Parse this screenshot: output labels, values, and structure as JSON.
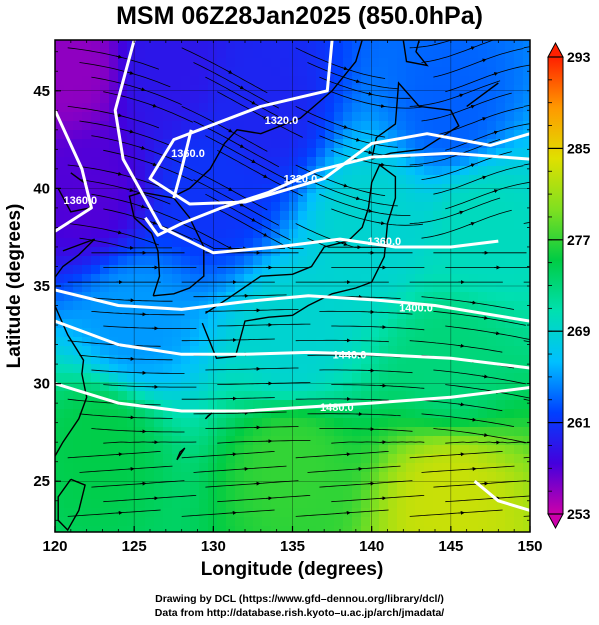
{
  "chart_data": {
    "type": "heatmap",
    "title": "MSM 06Z28Jan2025 (850.0hPa)",
    "xlabel": "Longitude (degrees)",
    "ylabel": "Latitude  (degrees)",
    "xlim": [
      120,
      150
    ],
    "ylim": [
      22.4,
      47.6
    ],
    "x_ticks": [
      "120",
      "125",
      "130",
      "135",
      "140",
      "145",
      "150"
    ],
    "y_ticks": [
      "25",
      "30",
      "35",
      "40",
      "45"
    ],
    "x_tick_values": [
      120,
      125,
      130,
      135,
      140,
      145,
      150
    ],
    "y_tick_values": [
      25,
      30,
      35,
      40,
      45
    ],
    "grid": true,
    "colorbar": {
      "min": 253,
      "max": 293,
      "tick_labels": [
        "293",
        "285",
        "277",
        "269",
        "261",
        "253"
      ],
      "tick_values": [
        293,
        285,
        277,
        269,
        261,
        253
      ],
      "colors": [
        "#cc00aa",
        "#4400dd",
        "#0040ff",
        "#00c0ff",
        "#00e0b0",
        "#00cc44",
        "#80e020",
        "#e0e000",
        "#ff9900",
        "#ff2000"
      ],
      "extend_arrows": true
    },
    "field_samples": [
      {
        "lon": 121,
        "lat": 46,
        "value": 255
      },
      {
        "lon": 127,
        "lat": 46,
        "value": 259
      },
      {
        "lon": 133,
        "lat": 44,
        "value": 260
      },
      {
        "lon": 145,
        "lat": 44,
        "value": 263
      },
      {
        "lon": 122,
        "lat": 40,
        "value": 257
      },
      {
        "lon": 130,
        "lat": 40,
        "value": 261
      },
      {
        "lon": 140,
        "lat": 38,
        "value": 269
      },
      {
        "lon": 147,
        "lat": 38,
        "value": 270
      },
      {
        "lon": 125,
        "lat": 33,
        "value": 265
      },
      {
        "lon": 135,
        "lat": 32,
        "value": 269
      },
      {
        "lon": 145,
        "lat": 31,
        "value": 273
      },
      {
        "lon": 123,
        "lat": 27,
        "value": 275
      },
      {
        "lon": 135,
        "lat": 26,
        "value": 277
      },
      {
        "lon": 145,
        "lat": 24,
        "value": 283
      }
    ],
    "contours": [
      {
        "label": "1320.0",
        "points": [
          [
            137.5,
            47.6
          ],
          [
            137.2,
            45
          ],
          [
            133,
            44.2
          ],
          [
            127.5,
            42.5
          ],
          [
            126,
            40.5
          ],
          [
            128.5,
            39.2
          ],
          [
            132,
            39.3
          ],
          [
            137,
            40.5
          ],
          [
            140,
            42.3
          ],
          [
            143.5,
            42.8
          ],
          [
            147.5,
            42.2
          ],
          [
            150,
            42.8
          ]
        ],
        "label_at": [
          134.3,
          43.5
        ]
      },
      {
        "label": "1320.0",
        "points": [
          [
            125.7,
            38.5
          ],
          [
            126.5,
            37.6
          ],
          [
            128,
            38.2
          ],
          [
            130.5,
            39
          ],
          [
            133.5,
            39.8
          ],
          [
            136.5,
            40.9
          ],
          [
            140,
            41.6
          ],
          [
            145,
            41.8
          ],
          [
            150,
            41.5
          ]
        ],
        "label_at": [
          135.5,
          40.5
        ]
      },
      {
        "label": "1360.0",
        "points": [
          [
            125,
            47.6
          ],
          [
            123.8,
            44
          ],
          [
            124.3,
            41.5
          ],
          [
            126.7,
            38
          ],
          [
            130,
            36.7
          ],
          [
            134,
            37
          ],
          [
            138,
            37.4
          ],
          [
            141.5,
            37
          ],
          [
            145,
            37
          ],
          [
            148,
            37.3
          ]
        ],
        "label_at": [
          140.8,
          37.3
        ]
      },
      {
        "label": "1360.0",
        "points": [
          [
            120,
            44
          ],
          [
            121.7,
            41
          ],
          [
            122.3,
            39
          ],
          [
            120,
            37.8
          ]
        ],
        "label_at": [
          121.6,
          39.4
        ]
      },
      {
        "label": "1360.0",
        "points": [
          [
            128.6,
            43
          ],
          [
            128,
            41
          ],
          [
            127.5,
            39.5
          ]
        ],
        "label_at": [
          128.4,
          41.8
        ]
      },
      {
        "label": "1400.0",
        "points": [
          [
            120,
            34.8
          ],
          [
            124,
            34
          ],
          [
            128,
            33.8
          ],
          [
            132,
            34.2
          ],
          [
            136,
            34.5
          ],
          [
            140,
            34.3
          ],
          [
            144,
            34
          ],
          [
            150,
            33.2
          ]
        ],
        "label_at": [
          142.8,
          33.9
        ]
      },
      {
        "label": "1440.0",
        "points": [
          [
            120,
            33.2
          ],
          [
            124,
            32
          ],
          [
            128,
            31.5
          ],
          [
            132,
            31.5
          ],
          [
            136,
            31.6
          ],
          [
            140,
            31.5
          ],
          [
            145,
            31.3
          ],
          [
            150,
            30.8
          ]
        ],
        "label_at": [
          138.6,
          31.5
        ]
      },
      {
        "label": "1480.0",
        "points": [
          [
            120,
            30
          ],
          [
            124,
            29
          ],
          [
            128,
            28.6
          ],
          [
            132,
            28.6
          ],
          [
            136,
            28.8
          ],
          [
            140,
            29
          ],
          [
            145,
            29.3
          ],
          [
            150,
            29.8
          ]
        ],
        "label_at": [
          137.8,
          28.8
        ]
      },
      {
        "label": "",
        "points": [
          [
            146.5,
            25
          ],
          [
            148,
            24
          ],
          [
            150,
            23.5
          ]
        ],
        "label_at": null
      }
    ]
  },
  "credits": {
    "line1": "Drawing by DCL (https://www.gfd–dennou.org/library/dcl/)",
    "line2": "Data from http://database.rish.kyoto–u.ac.jp/arch/jmadata/"
  }
}
